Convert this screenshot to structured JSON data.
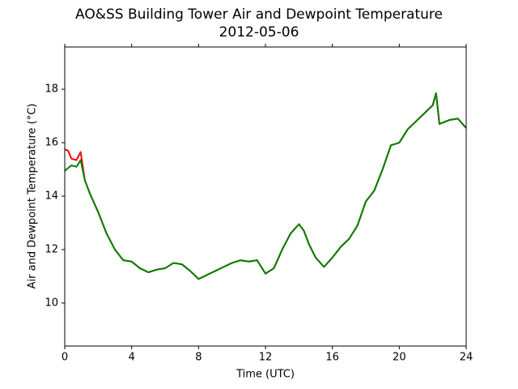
{
  "chart_data": {
    "type": "line",
    "title": "AO&SS Building Tower Air and Dewpoint Temperature",
    "subtitle": "2012-05-06",
    "x_label": "Time (UTC)",
    "y_label": "Air and Dewpoint Temperature (°C)",
    "x": [
      0,
      0.2,
      0.4,
      0.7,
      0.95,
      1.2,
      1.5,
      2,
      2.5,
      3,
      3.5,
      4,
      4.5,
      5,
      5.5,
      6,
      6.5,
      7,
      7.5,
      8,
      8.5,
      9,
      9.5,
      10,
      10.5,
      11,
      11.5,
      12,
      12.5,
      13,
      13.5,
      14,
      14.3,
      14.6,
      15,
      15.5,
      16,
      16.5,
      17,
      17.5,
      18,
      18.5,
      19,
      19.5,
      20,
      20.5,
      21,
      21.5,
      22,
      22.2,
      22.4,
      23,
      23.5,
      24
    ],
    "series": [
      {
        "color": "#ff0000",
        "values": [
          15.75,
          15.7,
          15.4,
          15.35,
          15.65,
          14.6,
          14.1,
          13.4,
          12.6,
          12.0,
          11.6,
          11.55,
          11.3,
          11.15,
          11.25,
          11.3,
          11.5,
          11.45,
          11.2,
          10.9,
          11.05,
          11.2,
          11.35,
          11.5,
          11.6,
          11.55,
          11.6,
          11.1,
          11.3,
          12.0,
          12.6,
          12.95,
          12.7,
          12.2,
          11.7,
          11.35,
          11.7,
          12.1,
          12.4,
          12.9,
          13.8,
          14.2,
          15.0,
          15.9,
          16.0,
          16.5,
          16.8,
          17.1,
          17.4,
          17.85,
          16.7,
          16.85,
          16.9,
          16.55
        ]
      },
      {
        "color": "#008000",
        "values": [
          14.95,
          15.05,
          15.15,
          15.1,
          15.35,
          14.6,
          14.1,
          13.4,
          12.6,
          12.0,
          11.6,
          11.55,
          11.3,
          11.15,
          11.25,
          11.3,
          11.5,
          11.45,
          11.2,
          10.9,
          11.05,
          11.2,
          11.35,
          11.5,
          11.6,
          11.55,
          11.6,
          11.1,
          11.3,
          12.0,
          12.6,
          12.95,
          12.7,
          12.2,
          11.7,
          11.35,
          11.7,
          12.1,
          12.4,
          12.9,
          13.8,
          14.2,
          15.0,
          15.9,
          16.0,
          16.5,
          16.8,
          17.1,
          17.4,
          17.85,
          16.7,
          16.85,
          16.9,
          16.55
        ]
      }
    ],
    "xlim": [
      0,
      24
    ],
    "xticks": [
      0,
      4,
      8,
      12,
      16,
      20,
      24
    ],
    "ylim": [
      8.39,
      19.58
    ],
    "yticks": [
      10,
      12,
      14,
      16,
      18
    ],
    "grid": false
  }
}
